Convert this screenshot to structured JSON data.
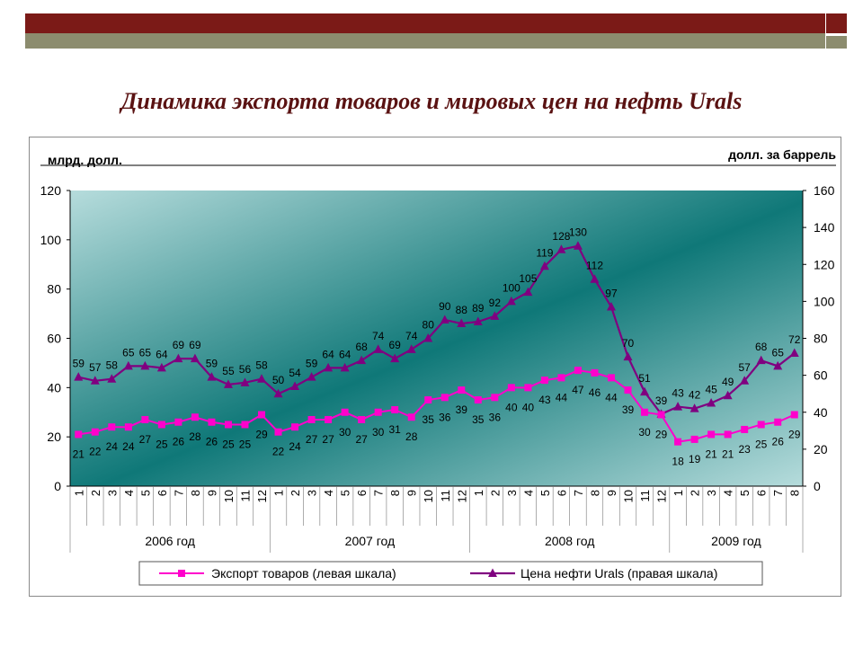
{
  "title": "Динамика экспорта  товаров и мировых цен на нефть Urals",
  "colors": {
    "header_bar": "#7b1a17",
    "header_bar_light": "#8c8c6e",
    "title_text": "#5a1212",
    "export_series": "#ff00cc",
    "oil_series": "#800080"
  },
  "chart_data": {
    "type": "line",
    "left_axis_label": "млрд. долл.",
    "right_axis_label": "долл. за баррель",
    "left_ylim": [
      0,
      120
    ],
    "left_ticks": [
      0,
      20,
      40,
      60,
      80,
      100,
      120
    ],
    "right_ylim": [
      0,
      160
    ],
    "right_ticks": [
      0,
      20,
      40,
      60,
      80,
      100,
      120,
      140,
      160
    ],
    "months": [
      "1",
      "2",
      "3",
      "4",
      "5",
      "6",
      "7",
      "8",
      "9",
      "10",
      "11",
      "12",
      "1",
      "2",
      "3",
      "4",
      "5",
      "6",
      "7",
      "8",
      "9",
      "10",
      "11",
      "12",
      "1",
      "2",
      "3",
      "4",
      "5",
      "6",
      "7",
      "8",
      "9",
      "10",
      "11",
      "12",
      "1",
      "2",
      "3",
      "4",
      "5",
      "6",
      "7",
      "8"
    ],
    "years": [
      {
        "label": "2006 год",
        "months": 12
      },
      {
        "label": "2007 год",
        "months": 12
      },
      {
        "label": "2008 год",
        "months": 12
      },
      {
        "label": "2009 год",
        "months": 8
      }
    ],
    "series": [
      {
        "name": "Экспорт товаров (левая шкала)",
        "axis": "left",
        "marker": "square",
        "values": [
          21,
          22,
          24,
          24,
          27,
          25,
          26,
          28,
          26,
          25,
          25,
          29,
          22,
          24,
          27,
          27,
          30,
          27,
          30,
          31,
          28,
          35,
          36,
          39,
          35,
          36,
          40,
          40,
          43,
          44,
          47,
          46,
          44,
          39,
          30,
          29,
          18,
          19,
          21,
          21,
          23,
          25,
          26,
          29
        ]
      },
      {
        "name": "Цена нефти Urals (правая шкала)",
        "axis": "right",
        "marker": "triangle",
        "values": [
          59,
          57,
          58,
          65,
          65,
          64,
          69,
          69,
          59,
          55,
          56,
          58,
          50,
          54,
          59,
          64,
          64,
          68,
          74,
          69,
          74,
          80,
          90,
          88,
          89,
          92,
          100,
          105,
          119,
          128,
          130,
          112,
          97,
          70,
          51,
          39,
          43,
          42,
          45,
          49,
          57,
          68,
          65,
          72
        ]
      }
    ],
    "legend": "bottom",
    "grid": false
  }
}
